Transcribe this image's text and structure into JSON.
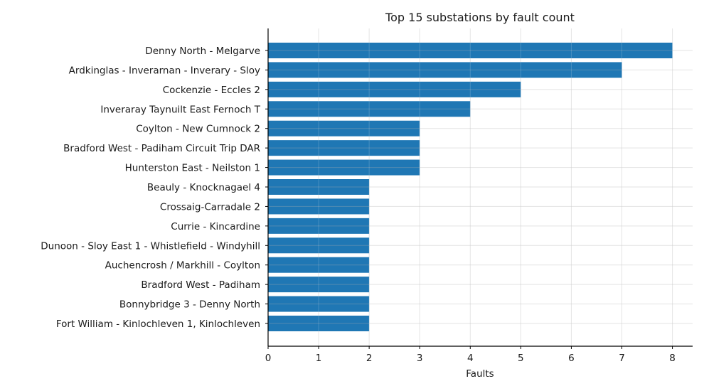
{
  "chart_data": {
    "type": "bar",
    "orientation": "horizontal",
    "title": "Top 15 substations by fault count",
    "xlabel": "Faults",
    "ylabel": "",
    "xlim": [
      0,
      8.4
    ],
    "xticks": [
      0,
      1,
      2,
      3,
      4,
      5,
      6,
      7,
      8
    ],
    "grid": true,
    "bar_color": "#1f77b4",
    "categories": [
      "Denny North - Melgarve",
      "Ardkinglas - Inverarnan - Inverary - Sloy",
      "Cockenzie - Eccles 2",
      "Inveraray Taynuilt East Fernoch T",
      "Coylton - New Cumnock 2",
      "Bradford West - Padiham Circuit Trip DAR",
      "Hunterston East - Neilston 1",
      "Beauly - Knocknagael 4",
      "Crossaig-Carradale 2",
      "Currie - Kincardine",
      "Dunoon - Sloy East 1 - Whistlefield - Windyhill",
      "Auchencrosh / Markhill - Coylton",
      "Bradford West - Padiham",
      "Bonnybridge 3 - Denny North",
      "Fort William - Kinlochleven 1, Kinlochleven"
    ],
    "values": [
      8,
      7,
      5,
      4,
      3,
      3,
      3,
      2,
      2,
      2,
      2,
      2,
      2,
      2,
      2
    ]
  }
}
